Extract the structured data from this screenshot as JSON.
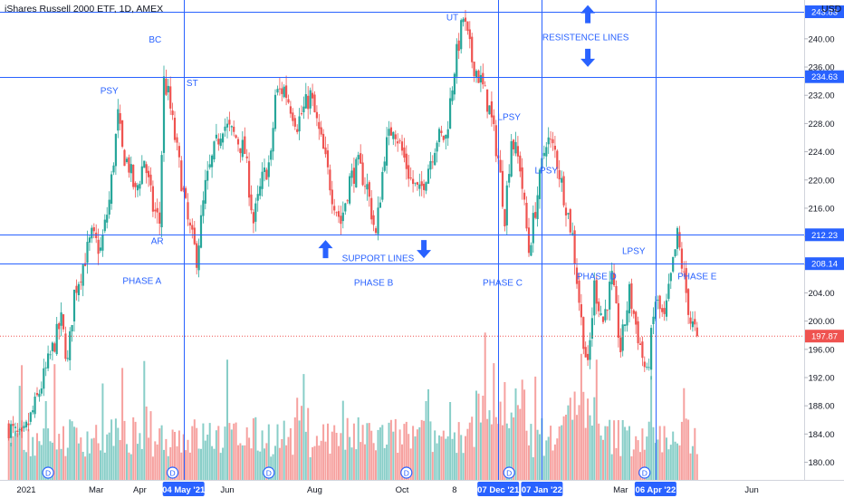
{
  "chart_data": {
    "type": "candlestick",
    "title": "iShares Russell 2000 ETF, 1D, AMEX",
    "currency": "USD",
    "ylim": [
      177.5,
      245.5
    ],
    "y_ticks": [
      180,
      184,
      188,
      192,
      196,
      200,
      204,
      208,
      212,
      216,
      220,
      224,
      228,
      232,
      236,
      240
    ],
    "x_ticks": [
      {
        "label": "2021",
        "t": 0.4
      },
      {
        "label": "Mar",
        "t": 2.0
      },
      {
        "label": "Apr",
        "t": 3.0
      },
      {
        "label": "Jun",
        "t": 5.0
      },
      {
        "label": "Aug",
        "t": 7.0
      },
      {
        "label": "Oct",
        "t": 9.0
      },
      {
        "label": "8",
        "t": 10.2
      },
      {
        "label": "Mar",
        "t": 14.0
      },
      {
        "label": "Jun",
        "t": 17.0
      }
    ],
    "x_range": [
      -0.2,
      18.2
    ],
    "last_price": 197.87,
    "horizontal_lines": [
      {
        "value": 243.83,
        "label": "243.83"
      },
      {
        "value": 234.63,
        "label": "234.63"
      },
      {
        "value": 212.23,
        "label": "212.23"
      },
      {
        "value": 208.14,
        "label": "208.14"
      }
    ],
    "vertical_lines": [
      {
        "t": 4.0,
        "label": "04 May '21"
      },
      {
        "t": 11.2,
        "label": "07 Dec '21"
      },
      {
        "t": 12.2,
        "label": "07 Jan '22"
      },
      {
        "t": 14.8,
        "label": "06 Apr '22"
      }
    ],
    "price_path": [
      [
        0.0,
        185
      ],
      [
        0.3,
        183
      ],
      [
        0.6,
        188
      ],
      [
        0.9,
        194
      ],
      [
        1.2,
        200
      ],
      [
        1.35,
        194
      ],
      [
        1.5,
        204
      ],
      [
        1.7,
        208
      ],
      [
        1.9,
        212
      ],
      [
        2.1,
        210
      ],
      [
        2.3,
        217
      ],
      [
        2.5,
        229
      ],
      [
        2.6,
        224
      ],
      [
        2.75,
        222
      ],
      [
        2.9,
        218
      ],
      [
        3.1,
        223
      ],
      [
        3.3,
        216
      ],
      [
        3.45,
        214
      ],
      [
        3.55,
        234
      ],
      [
        3.65,
        232
      ],
      [
        3.8,
        226
      ],
      [
        3.95,
        220
      ],
      [
        4.1,
        214
      ],
      [
        4.3,
        209
      ],
      [
        4.5,
        219
      ],
      [
        4.7,
        224
      ],
      [
        4.9,
        228
      ],
      [
        5.2,
        226
      ],
      [
        5.4,
        224
      ],
      [
        5.6,
        214
      ],
      [
        5.8,
        220
      ],
      [
        6.0,
        223
      ],
      [
        6.1,
        232
      ],
      [
        6.3,
        233
      ],
      [
        6.6,
        228
      ],
      [
        6.9,
        232
      ],
      [
        7.2,
        224
      ],
      [
        7.4,
        218
      ],
      [
        7.6,
        214
      ],
      [
        7.8,
        220
      ],
      [
        8.0,
        222
      ],
      [
        8.2,
        219
      ],
      [
        8.4,
        212
      ],
      [
        8.6,
        224
      ],
      [
        8.8,
        228
      ],
      [
        9.0,
        224
      ],
      [
        9.2,
        220
      ],
      [
        9.4,
        218
      ],
      [
        9.6,
        222
      ],
      [
        9.8,
        226
      ],
      [
        10.0,
        226
      ],
      [
        10.2,
        236
      ],
      [
        10.4,
        243
      ],
      [
        10.6,
        237
      ],
      [
        10.8,
        234
      ],
      [
        11.0,
        230
      ],
      [
        11.2,
        223
      ],
      [
        11.35,
        215
      ],
      [
        11.5,
        226
      ],
      [
        11.7,
        222
      ],
      [
        11.9,
        210
      ],
      [
        12.1,
        218
      ],
      [
        12.3,
        226
      ],
      [
        12.5,
        224
      ],
      [
        12.7,
        218
      ],
      [
        12.9,
        212
      ],
      [
        13.1,
        200
      ],
      [
        13.25,
        193
      ],
      [
        13.4,
        205
      ],
      [
        13.6,
        200
      ],
      [
        13.8,
        206
      ],
      [
        14.0,
        196
      ],
      [
        14.2,
        204
      ],
      [
        14.4,
        198
      ],
      [
        14.6,
        192
      ],
      [
        14.8,
        203
      ],
      [
        15.0,
        200
      ],
      [
        15.2,
        208
      ],
      [
        15.3,
        212
      ],
      [
        15.45,
        206
      ],
      [
        15.6,
        200
      ],
      [
        15.75,
        197.87
      ]
    ],
    "annotations": [
      {
        "text": "PSY",
        "t": 2.3,
        "y": 232.2
      },
      {
        "text": "BC",
        "t": 3.35,
        "y": 239.5
      },
      {
        "text": "ST",
        "t": 4.2,
        "y": 233.3
      },
      {
        "text": "AR",
        "t": 3.4,
        "y": 210.9
      },
      {
        "text": "PHASE A",
        "t": 3.05,
        "y": 205.3
      },
      {
        "text": "UT",
        "t": 10.15,
        "y": 242.6
      },
      {
        "text": "LPSY",
        "t": 11.45,
        "y": 228.5
      },
      {
        "text": "LPSY",
        "t": 12.3,
        "y": 220.9
      },
      {
        "text": "LPSY",
        "t": 14.3,
        "y": 209.5
      },
      {
        "text": "RESISTENCE LINES",
        "t": 13.2,
        "y": 239.8
      },
      {
        "text": "SUPPORT LINES",
        "t": 8.45,
        "y": 208.5
      },
      {
        "text": "PHASE B",
        "t": 8.35,
        "y": 205.0
      },
      {
        "text": "PHASE C",
        "t": 11.3,
        "y": 205.0
      },
      {
        "text": "PHASE D",
        "t": 13.45,
        "y": 205.9
      },
      {
        "text": "PHASE E",
        "t": 15.75,
        "y": 205.9
      }
    ],
    "arrows": [
      {
        "direction": "up",
        "t": 13.25,
        "y": 243.5
      },
      {
        "direction": "down",
        "t": 13.25,
        "y": 237.3
      },
      {
        "direction": "up",
        "t": 7.25,
        "y": 210.2
      },
      {
        "direction": "down",
        "t": 9.5,
        "y": 210.2
      }
    ],
    "dividend_markers": [
      0.9,
      3.75,
      5.95,
      9.1,
      11.45,
      14.55
    ],
    "colors": {
      "up": "#26a69a",
      "down": "#ef5350",
      "line": "#2962ff",
      "last": "#ef5350"
    }
  }
}
